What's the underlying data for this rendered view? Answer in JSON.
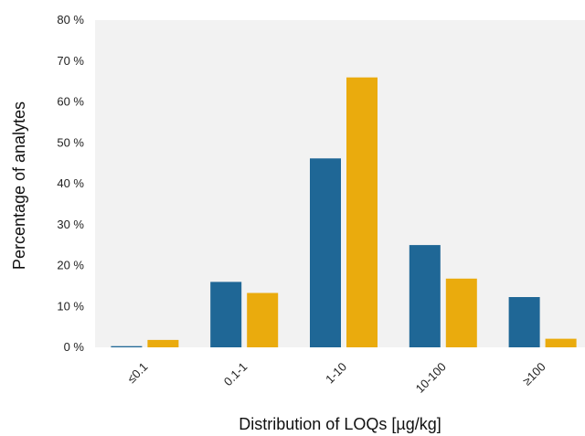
{
  "chart_data": {
    "type": "bar",
    "title": "",
    "xlabel": "Distribution of LOQs [µg/kg]",
    "ylabel": "Percentage of analytes",
    "categories": [
      "≤0.1",
      "0.1-1",
      "1-10",
      "10-100",
      "≥100"
    ],
    "series": [
      {
        "values": [
          0.3,
          16.0,
          46.2,
          25.0,
          12.3
        ],
        "color": "#1f6796"
      },
      {
        "values": [
          1.8,
          13.3,
          66.0,
          16.8,
          2.1
        ],
        "color": "#eaab0d"
      }
    ],
    "ylim": [
      0,
      80
    ],
    "yticks": [
      "0 %",
      "10 %",
      "20 %",
      "30 %",
      "40 %",
      "50 %",
      "60 %",
      "70 %",
      "80 %"
    ],
    "grid": "none",
    "plot_background": "#f2f2f2"
  }
}
